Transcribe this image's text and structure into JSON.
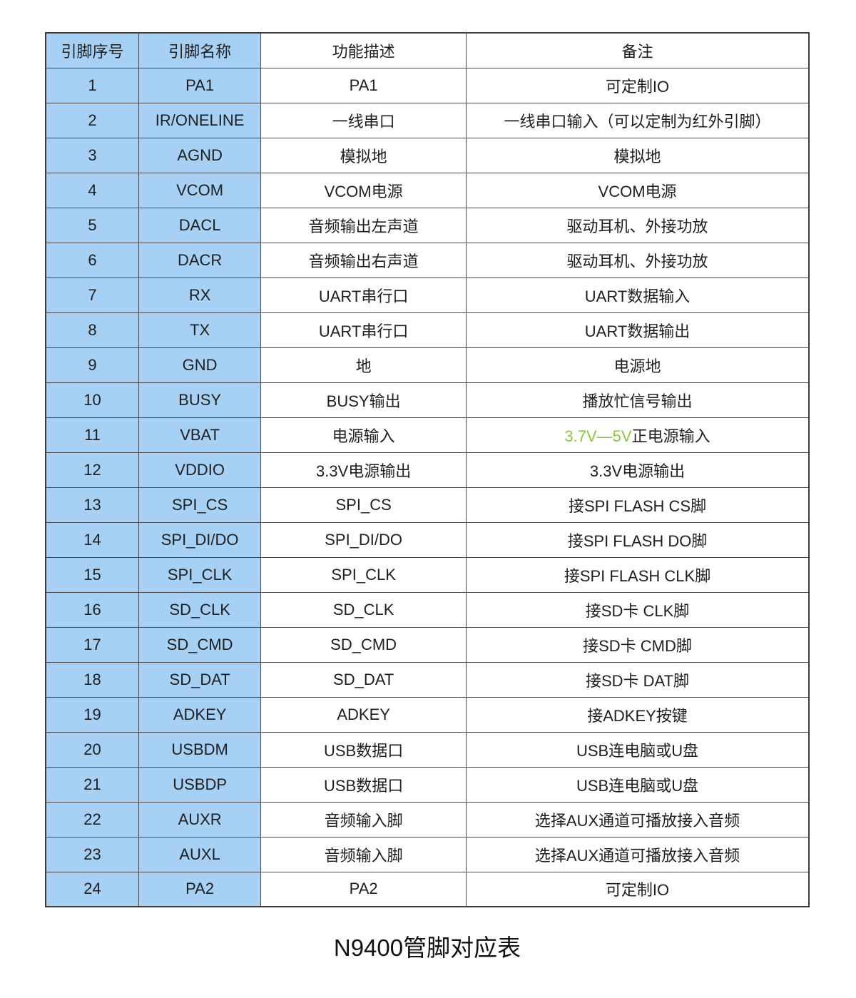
{
  "caption": "N9400管脚对应表",
  "colors": {
    "cell_blue": "#A6D1F5",
    "highlight_green": "#8CC540",
    "border": "#4a4a4a",
    "text": "#1f1f1f"
  },
  "table": {
    "headers": [
      "引脚序号",
      "引脚名称",
      "功能描述",
      "备注"
    ],
    "rows": [
      {
        "num": "1",
        "name": "PA1",
        "func": "PA1",
        "note": "可定制IO"
      },
      {
        "num": "2",
        "name": "IR/ONELINE",
        "func": "一线串口",
        "note": "一线串口输入（可以定制为红外引脚）"
      },
      {
        "num": "3",
        "name": "AGND",
        "func": "模拟地",
        "note": "模拟地"
      },
      {
        "num": "4",
        "name": "VCOM",
        "func": "VCOM电源",
        "note": "VCOM电源"
      },
      {
        "num": "5",
        "name": "DACL",
        "func": "音频输出左声道",
        "note": "驱动耳机、外接功放"
      },
      {
        "num": "6",
        "name": "DACR",
        "func": "音频输出右声道",
        "note": "驱动耳机、外接功放"
      },
      {
        "num": "7",
        "name": "RX",
        "func": "UART串行口",
        "note": "UART数据输入"
      },
      {
        "num": "8",
        "name": "TX",
        "func": "UART串行口",
        "note": "UART数据输出"
      },
      {
        "num": "9",
        "name": "GND",
        "func": "地",
        "note": "电源地"
      },
      {
        "num": "10",
        "name": "BUSY",
        "func": "BUSY输出",
        "note": "播放忙信号输出"
      },
      {
        "num": "11",
        "name": "VBAT",
        "func": "电源输入",
        "note_highlight": "3.7V—5V",
        "note": "正电源输入"
      },
      {
        "num": "12",
        "name": "VDDIO",
        "func": "3.3V电源输出",
        "note": "3.3V电源输出"
      },
      {
        "num": "13",
        "name": "SPI_CS",
        "func": "SPI_CS",
        "note": "接SPI FLASH CS脚"
      },
      {
        "num": "14",
        "name": "SPI_DI/DO",
        "func": "SPI_DI/DO",
        "note": "接SPI FLASH DO脚"
      },
      {
        "num": "15",
        "name": "SPI_CLK",
        "func": "SPI_CLK",
        "note": "接SPI FLASH CLK脚"
      },
      {
        "num": "16",
        "name": "SD_CLK",
        "func": "SD_CLK",
        "note": "接SD卡  CLK脚"
      },
      {
        "num": "17",
        "name": "SD_CMD",
        "func": "SD_CMD",
        "note": "接SD卡  CMD脚"
      },
      {
        "num": "18",
        "name": "SD_DAT",
        "func": "SD_DAT",
        "note": "接SD卡  DAT脚"
      },
      {
        "num": "19",
        "name": "ADKEY",
        "func": "ADKEY",
        "note": "接ADKEY按键"
      },
      {
        "num": "20",
        "name": "USBDM",
        "func": "USB数据口",
        "note": "USB连电脑或U盘"
      },
      {
        "num": "21",
        "name": "USBDP",
        "func": "USB数据口",
        "note": "USB连电脑或U盘"
      },
      {
        "num": "22",
        "name": "AUXR",
        "func": "音频输入脚",
        "note": "选择AUX通道可播放接入音频"
      },
      {
        "num": "23",
        "name": "AUXL",
        "func": "音频输入脚",
        "note": "选择AUX通道可播放接入音频"
      },
      {
        "num": "24",
        "name": "PA2",
        "func": "PA2",
        "note": "可定制IO"
      }
    ]
  }
}
